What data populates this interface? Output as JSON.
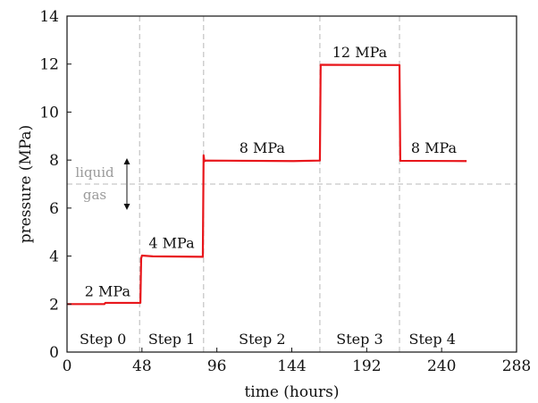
{
  "chart_data": {
    "type": "line",
    "xlabel": "time (hours)",
    "ylabel": "pressure (MPa)",
    "xlim": [
      0,
      288
    ],
    "ylim": [
      0,
      14
    ],
    "xticks": [
      "0",
      "48",
      "96",
      "144",
      "192",
      "240",
      "288"
    ],
    "yticks": [
      "0",
      "2",
      "4",
      "6",
      "8",
      "10",
      "12",
      "14"
    ],
    "grid": false,
    "series": [
      {
        "color": "#e8161b",
        "x": [
          0,
          24,
          24.5,
          47,
          47.5,
          48,
          55,
          87,
          87.5,
          88,
          89,
          145,
          162,
          162.5,
          213,
          213.5,
          256
        ],
        "y": [
          2.0,
          2.0,
          2.05,
          2.05,
          3.9,
          4.02,
          3.99,
          3.97,
          8.2,
          7.95,
          7.98,
          7.96,
          7.98,
          11.97,
          11.96,
          7.97,
          7.96
        ]
      }
    ],
    "step_boundaries": [
      46.5,
      87.5,
      162,
      213
    ],
    "phase_boundary": {
      "y": 7,
      "above_label": "liquid",
      "below_label": "gas"
    },
    "step_labels": [
      {
        "text": "Step 0",
        "x": 23
      },
      {
        "text": "Step 1",
        "x": 67
      },
      {
        "text": "Step 2",
        "x": 125
      },
      {
        "text": "Step 3",
        "x": 187.5
      },
      {
        "text": "Step 4",
        "x": 234
      }
    ],
    "level_labels": [
      {
        "text": "2 MPa",
        "x": 26,
        "y": 2.0
      },
      {
        "text": "4 MPa",
        "x": 67,
        "y": 4.0
      },
      {
        "text": "8 MPa",
        "x": 125,
        "y": 7.97
      },
      {
        "text": "12 MPa",
        "x": 187.5,
        "y": 11.96
      },
      {
        "text": "8 MPa",
        "x": 235,
        "y": 7.96
      }
    ]
  }
}
